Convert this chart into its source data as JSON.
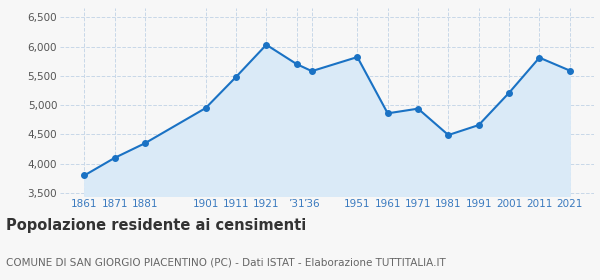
{
  "years": [
    1861,
    1871,
    1881,
    1901,
    1911,
    1921,
    1931,
    1936,
    1951,
    1961,
    1971,
    1981,
    1991,
    2001,
    2011,
    2021
  ],
  "population": [
    3800,
    4100,
    4350,
    4950,
    5480,
    6030,
    5700,
    5580,
    5820,
    4860,
    4940,
    4490,
    4660,
    5210,
    5810,
    5590
  ],
  "yticks": [
    3500,
    4000,
    4500,
    5000,
    5500,
    6000,
    6500
  ],
  "ylim": [
    3450,
    6650
  ],
  "xlim": [
    1853,
    2029
  ],
  "line_color": "#1a72c4",
  "fill_color": "#daeaf7",
  "marker_color": "#1a72c4",
  "grid_color": "#c8d8e8",
  "bg_color": "#f7f7f7",
  "title": "Popolazione residente ai censimenti",
  "subtitle": "COMUNE DI SAN GIORGIO PIACENTINO (PC) - Dati ISTAT - Elaborazione TUTTITALIA.IT",
  "title_fontsize": 10.5,
  "subtitle_fontsize": 7.5,
  "tick_label_color": "#3a7abf",
  "ytick_label_color": "#555555"
}
